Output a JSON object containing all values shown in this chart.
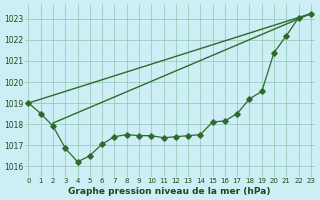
{
  "title": "Graphe pression niveau de la mer (hPa)",
  "bg_color": "#cdeef5",
  "grid_color": "#99ccbb",
  "line_color": "#2d6a2d",
  "ylim": [
    1015.5,
    1023.7
  ],
  "xlim": [
    -0.3,
    23.3
  ],
  "yticks": [
    1016,
    1017,
    1018,
    1019,
    1020,
    1021,
    1022,
    1023
  ],
  "x_labels": [
    "0",
    "1",
    "2",
    "3",
    "4",
    "5",
    "6",
    "7",
    "8",
    "9",
    "10",
    "11",
    "12",
    "13",
    "14",
    "15",
    "16",
    "17",
    "18",
    "19",
    "20",
    "21",
    "22",
    "23"
  ],
  "straight_line1_x": [
    0,
    23
  ],
  "straight_line1_y": [
    1019.0,
    1023.25
  ],
  "straight_line2_x": [
    2,
    23
  ],
  "straight_line2_y": [
    1018.05,
    1023.25
  ],
  "wiggly_x": [
    0,
    1,
    2,
    3,
    4,
    5,
    6,
    7,
    8,
    9,
    10,
    11,
    12,
    13,
    14,
    15,
    16,
    17,
    18,
    19,
    20,
    21,
    22,
    23
  ],
  "wiggly_y": [
    1019.0,
    1018.5,
    1017.9,
    1016.85,
    1016.2,
    1016.5,
    1017.05,
    1017.4,
    1017.5,
    1017.45,
    1017.45,
    1017.35,
    1017.4,
    1017.45,
    1017.5,
    1018.1,
    1018.15,
    1018.5,
    1019.2,
    1019.55,
    1021.4,
    1022.2,
    1023.05,
    1023.25
  ]
}
